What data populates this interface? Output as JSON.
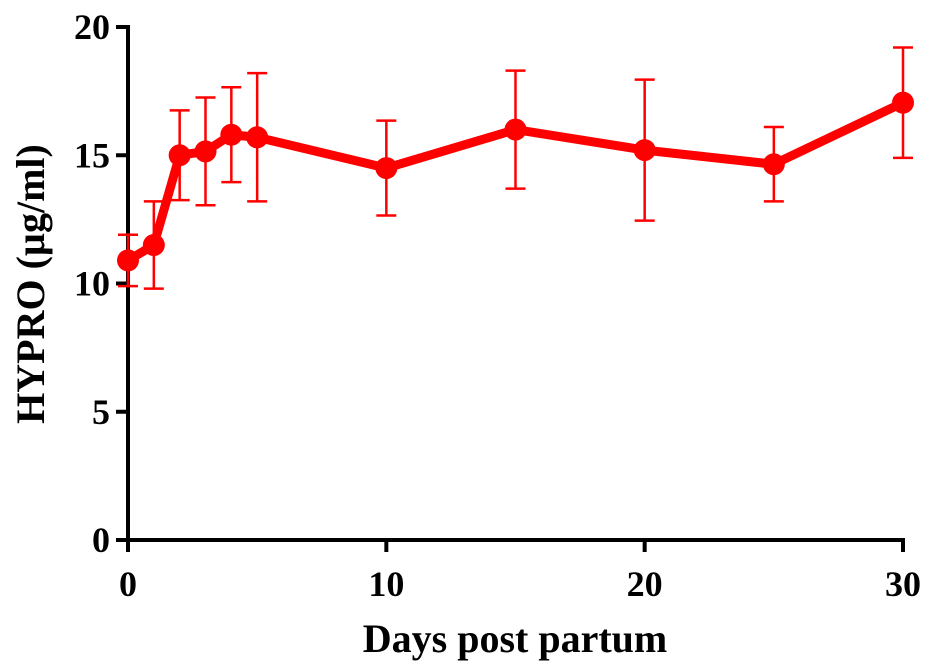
{
  "chart_data": {
    "type": "line",
    "xlabel": "Days post partum",
    "ylabel": "HYPRO (µg/ml)",
    "xlim": [
      0,
      30
    ],
    "ylim": [
      0,
      20
    ],
    "xticks": [
      0,
      10,
      20,
      30
    ],
    "yticks": [
      0,
      5,
      10,
      15,
      20
    ],
    "grid": false,
    "series": [
      {
        "color": "#ff0000",
        "points": [
          {
            "x": 0,
            "y": 10.9,
            "err": 1.0
          },
          {
            "x": 1,
            "y": 11.5,
            "err": 1.7
          },
          {
            "x": 2,
            "y": 15.0,
            "err": 1.75
          },
          {
            "x": 3,
            "y": 15.15,
            "err": 2.1
          },
          {
            "x": 4,
            "y": 15.8,
            "err": 1.85
          },
          {
            "x": 5,
            "y": 15.7,
            "err": 2.5
          },
          {
            "x": 10,
            "y": 14.5,
            "err": 1.85
          },
          {
            "x": 15,
            "y": 16.0,
            "err": 2.3
          },
          {
            "x": 20,
            "y": 15.2,
            "err": 2.75
          },
          {
            "x": 25,
            "y": 14.65,
            "err": 1.45
          },
          {
            "x": 30,
            "y": 17.05,
            "err": 2.15
          }
        ]
      }
    ]
  }
}
